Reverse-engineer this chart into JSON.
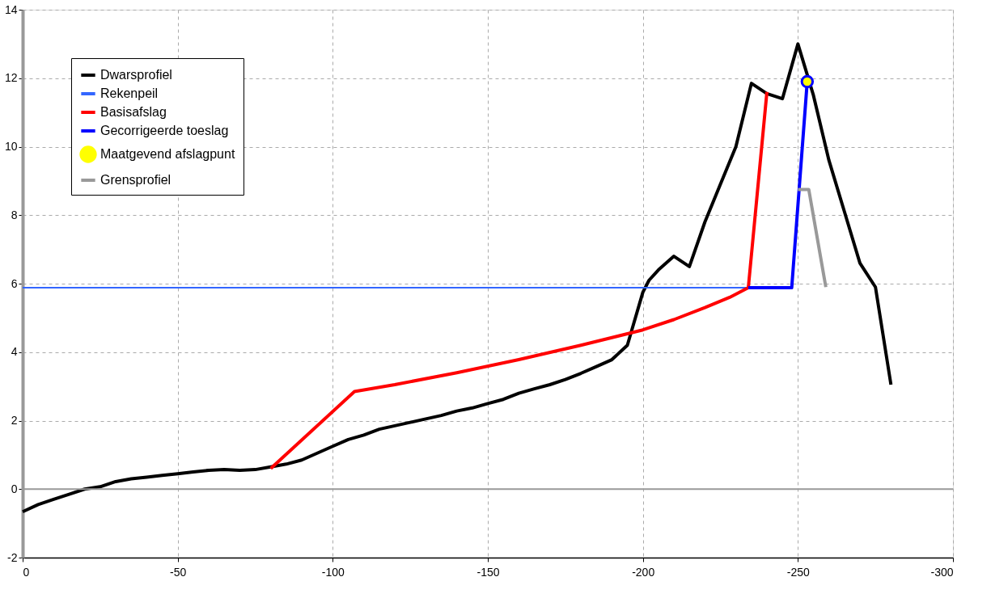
{
  "chart_data": {
    "type": "line",
    "xlim": [
      0,
      -300
    ],
    "xticks": [
      0,
      -50,
      -100,
      -150,
      -200,
      -250,
      -300
    ],
    "ylim": [
      -2,
      14
    ],
    "yticks": [
      -2,
      0,
      2,
      4,
      6,
      8,
      10,
      12,
      14
    ],
    "grid": true,
    "legend": "top left",
    "line_style": "solid",
    "ref_lines": [
      {
        "axis": "y",
        "value": 0,
        "color": "#999999"
      }
    ],
    "series": [
      {
        "name": "Dwarsprofiel",
        "color": "#000000",
        "x": [
          0,
          -5,
          -10,
          -15,
          -20,
          -25,
          -30,
          -35,
          -40,
          -45,
          -50,
          -55,
          -60,
          -65,
          -70,
          -75,
          -80,
          -85,
          -90,
          -95,
          -100,
          -105,
          -110,
          -115,
          -120,
          -125,
          -130,
          -135,
          -140,
          -145,
          -150,
          -155,
          -160,
          -165,
          -170,
          -175,
          -180,
          -185,
          -190,
          -195,
          -200,
          -202,
          -205,
          -210,
          -215,
          -220,
          -225,
          -230,
          -235,
          -240,
          -245,
          -250,
          -255,
          -260,
          -265,
          -270,
          -275,
          -280
        ],
        "values": [
          -0.66,
          -0.45,
          -0.3,
          -0.15,
          0.0,
          0.07,
          0.22,
          0.3,
          0.35,
          0.4,
          0.45,
          0.5,
          0.55,
          0.57,
          0.55,
          0.57,
          0.65,
          0.73,
          0.85,
          1.05,
          1.25,
          1.45,
          1.58,
          1.75,
          1.85,
          1.95,
          2.05,
          2.15,
          2.28,
          2.37,
          2.5,
          2.62,
          2.8,
          2.93,
          3.05,
          3.2,
          3.38,
          3.58,
          3.78,
          4.2,
          5.75,
          6.1,
          6.4,
          6.8,
          6.5,
          7.8,
          8.9,
          10.0,
          11.85,
          11.55,
          11.4,
          13.0,
          11.5,
          9.6,
          8.1,
          6.6,
          5.9,
          3.05
        ]
      },
      {
        "name": "Rekenpeil",
        "color": "#3366ff",
        "x": [
          0,
          -234
        ],
        "values": [
          5.88,
          5.88
        ]
      },
      {
        "name": "Basisafslag",
        "color": "#ff0000",
        "x": [
          -80,
          -107,
          -120,
          -140,
          -160,
          -180,
          -200,
          -210,
          -220,
          -228,
          -234,
          -240
        ],
        "values": [
          0.6,
          2.85,
          3.05,
          3.4,
          3.78,
          4.2,
          4.65,
          4.95,
          5.3,
          5.6,
          5.88,
          11.6
        ]
      },
      {
        "name": "Gecorrigeerde toeslag",
        "color": "#0000ff",
        "x": [
          -234,
          -248,
          -253
        ],
        "values": [
          5.88,
          5.88,
          11.9
        ]
      },
      {
        "name": "Maatgevend afslagpunt",
        "type": "scatter",
        "marker": "circle",
        "color": "#ffff00",
        "x": [
          -253
        ],
        "values": [
          11.9
        ]
      },
      {
        "name": "Grensprofiel",
        "color": "#999999",
        "x": [
          -250,
          -253.5,
          -259
        ],
        "values": [
          8.75,
          8.75,
          5.9
        ]
      }
    ]
  }
}
